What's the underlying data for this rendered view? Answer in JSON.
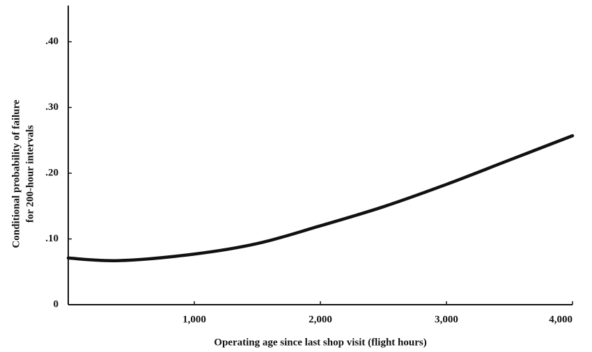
{
  "chart_data": {
    "type": "line",
    "ylabel": [
      "Conditional probability of failure",
      "for 200-hour intervals"
    ],
    "xlabel": "Operating age since last shop visit (flight hours)",
    "x": [
      0,
      400,
      1000,
      1500,
      2000,
      2500,
      3000,
      3500,
      4000
    ],
    "series": [
      {
        "color": "#111111",
        "values": [
          0.071,
          0.067,
          0.077,
          0.093,
          0.12,
          0.149,
          0.183,
          0.22,
          0.257
        ]
      }
    ],
    "xlim": [
      0,
      4000
    ],
    "xticks": [
      {
        "value": 1000,
        "label": "1,000"
      },
      {
        "value": 2000,
        "label": "2,000"
      },
      {
        "value": 3000,
        "label": "3,000"
      },
      {
        "value": 4000,
        "label": "4,000"
      }
    ],
    "ylim": [
      0,
      0.455
    ],
    "yticks": [
      0,
      {
        "value": 0.1,
        "label": ".10"
      },
      {
        "value": 0.2,
        "label": ".20"
      },
      {
        "value": 0.3,
        "label": ".30"
      },
      {
        "value": 0.4,
        "label": ".40"
      }
    ]
  }
}
